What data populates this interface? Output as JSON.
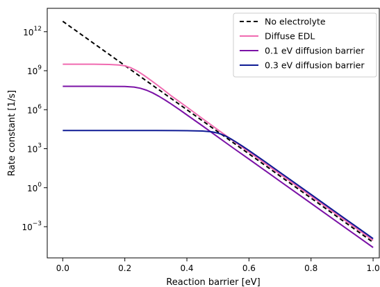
{
  "chart_data": {
    "type": "line",
    "xlabel": "Reaction barrier [eV]",
    "ylabel": "Rate constant [1/s]",
    "xlim": [
      -0.05,
      1.02
    ],
    "ylim_log10": [
      -5.4,
      13.8
    ],
    "y_scale": "log",
    "grid": false,
    "legend_position": "top-right",
    "x_ticks": [
      0.0,
      0.2,
      0.4,
      0.6,
      0.8,
      1.0
    ],
    "x_tick_labels": [
      "0.0",
      "0.2",
      "0.4",
      "0.6",
      "0.8",
      "1.0"
    ],
    "y_ticks_log10": [
      -3,
      0,
      3,
      6,
      9,
      12
    ],
    "y_tick_labels": [
      {
        "base": "10",
        "exp": "−3"
      },
      {
        "base": "10",
        "exp": "0"
      },
      {
        "base": "10",
        "exp": "3"
      },
      {
        "base": "10",
        "exp": "6"
      },
      {
        "base": "10",
        "exp": "9"
      },
      {
        "base": "10",
        "exp": "12"
      }
    ],
    "series": [
      {
        "name": "No electrolyte",
        "color": "#000000",
        "style": "dashed",
        "x": [
          0.0,
          0.05,
          0.1,
          0.15,
          0.2,
          0.25,
          0.3,
          0.35,
          0.4,
          0.45,
          0.5,
          0.55,
          0.6,
          0.65,
          0.7,
          0.75,
          0.8,
          0.85,
          0.9,
          0.95,
          1.0
        ],
        "y_log10": [
          12.8,
          11.95,
          11.1,
          10.25,
          9.4,
          8.55,
          7.7,
          6.85,
          6.0,
          5.15,
          4.3,
          3.45,
          2.6,
          1.75,
          0.9,
          0.05,
          -0.8,
          -1.65,
          -2.5,
          -3.35,
          -4.2
        ]
      },
      {
        "name": "Diffuse EDL",
        "color": "#f06ab0",
        "style": "solid",
        "x": [
          0.0,
          0.05,
          0.1,
          0.15,
          0.18,
          0.2,
          0.22,
          0.24,
          0.26,
          0.28,
          0.3,
          0.32,
          0.35,
          0.4,
          0.45,
          0.5,
          0.55,
          0.6,
          0.7,
          0.8,
          0.9,
          1.0
        ],
        "y_log10": [
          9.5,
          9.5,
          9.5,
          9.48,
          9.44,
          9.38,
          9.22,
          8.98,
          8.67,
          8.33,
          7.98,
          7.62,
          7.06,
          6.2,
          5.32,
          4.45,
          3.6,
          2.75,
          1.05,
          -0.65,
          -2.35,
          -4.05
        ]
      },
      {
        "name": "0.1 eV diffusion barrier",
        "color": "#7b12a6",
        "style": "solid",
        "x": [
          0.0,
          0.1,
          0.2,
          0.23,
          0.25,
          0.27,
          0.29,
          0.31,
          0.33,
          0.35,
          0.38,
          0.4,
          0.45,
          0.5,
          0.55,
          0.6,
          0.7,
          0.8,
          0.9,
          1.0
        ],
        "y_log10": [
          7.8,
          7.8,
          7.79,
          7.74,
          7.65,
          7.5,
          7.29,
          7.03,
          6.74,
          6.43,
          5.94,
          5.6,
          4.76,
          3.9,
          3.04,
          2.2,
          0.5,
          -1.2,
          -2.9,
          -4.6
        ]
      },
      {
        "name": "0.3 eV diffusion barrier",
        "color": "#0d1a94",
        "style": "solid",
        "x": [
          0.0,
          0.1,
          0.2,
          0.3,
          0.4,
          0.45,
          0.48,
          0.5,
          0.52,
          0.54,
          0.56,
          0.58,
          0.6,
          0.65,
          0.7,
          0.8,
          0.9,
          1.0
        ],
        "y_log10": [
          4.4,
          4.4,
          4.4,
          4.4,
          4.39,
          4.36,
          4.3,
          4.2,
          4.03,
          3.78,
          3.49,
          3.18,
          2.86,
          2.03,
          1.18,
          -0.52,
          -2.22,
          -3.92
        ]
      }
    ]
  }
}
